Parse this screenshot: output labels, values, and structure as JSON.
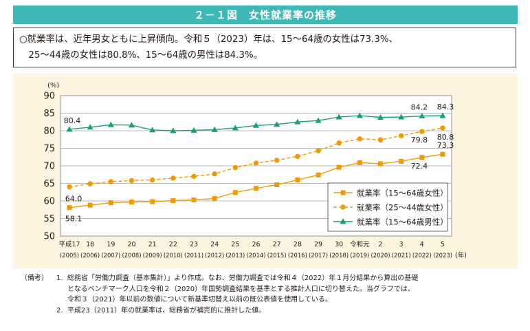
{
  "header": {
    "title": "２－１図　女性就業率の推移"
  },
  "summary": {
    "line1": "○就業率は、近年男女ともに上昇傾向。令和５（2023）年は、15～64歳の女性は73.3%、",
    "line2": "　25～44歳の女性は80.8%、15～64歳の男性は84.3%。"
  },
  "chart_data": {
    "type": "line",
    "yunit": "(%)",
    "xunit": "(年)",
    "ylim": [
      50,
      90
    ],
    "yticks": [
      "50",
      "55",
      "60",
      "65",
      "70",
      "75",
      "80",
      "85",
      "90"
    ],
    "grid": true,
    "legend_position": "bottom-right",
    "categories": [
      {
        "era": "平成17",
        "year": "(2005)"
      },
      {
        "era": "18",
        "year": "(2006)"
      },
      {
        "era": "19",
        "year": "(2007)"
      },
      {
        "era": "20",
        "year": "(2008)"
      },
      {
        "era": "21",
        "year": "(2009)"
      },
      {
        "era": "22",
        "year": "(2010)"
      },
      {
        "era": "23",
        "year": "(2011)"
      },
      {
        "era": "24",
        "year": "(2012)"
      },
      {
        "era": "25",
        "year": "(2013)"
      },
      {
        "era": "26",
        "year": "(2014)"
      },
      {
        "era": "27",
        "year": "(2015)"
      },
      {
        "era": "28",
        "year": "(2016)"
      },
      {
        "era": "29",
        "year": "(2017)"
      },
      {
        "era": "30",
        "year": "(2018)"
      },
      {
        "era": "令和元",
        "year": "(2019)"
      },
      {
        "era": "2",
        "year": "(2020)"
      },
      {
        "era": "3",
        "year": "(2021)"
      },
      {
        "era": "4",
        "year": "(2022)"
      },
      {
        "era": "5",
        "year": "(2023)"
      }
    ],
    "series": [
      {
        "name": "就業率（15～64歳女性）",
        "color": "#f39800",
        "marker": "square",
        "dashed": false,
        "values": [
          58.1,
          58.8,
          59.5,
          59.7,
          59.8,
          60.1,
          60.3,
          60.7,
          62.4,
          63.6,
          64.6,
          66.0,
          67.4,
          69.6,
          70.9,
          70.6,
          71.3,
          72.4,
          73.3
        ],
        "labels": [
          {
            "index": 0,
            "text": "58.1"
          },
          {
            "index": 17,
            "text": "72.4"
          },
          {
            "index": 18,
            "text": "73.3"
          }
        ]
      },
      {
        "name": "就業率（25～44歳女性）",
        "color": "#f39800",
        "marker": "circle",
        "dashed": true,
        "values": [
          64.0,
          64.9,
          65.5,
          65.8,
          66.0,
          66.5,
          67.0,
          67.7,
          69.5,
          70.8,
          71.6,
          72.7,
          74.3,
          76.5,
          77.7,
          77.4,
          78.6,
          79.8,
          80.8
        ],
        "labels": [
          {
            "index": 0,
            "text": "64.0"
          },
          {
            "index": 17,
            "text": "79.8"
          },
          {
            "index": 18,
            "text": "80.8"
          }
        ]
      },
      {
        "name": "就業率（15～64歳男性）",
        "color": "#1a9d7a",
        "marker": "triangle",
        "dashed": false,
        "values": [
          80.4,
          81.0,
          81.7,
          81.6,
          80.2,
          80.0,
          80.1,
          80.3,
          80.8,
          81.5,
          81.8,
          82.5,
          82.9,
          83.9,
          84.3,
          83.8,
          83.9,
          84.2,
          84.3
        ],
        "labels": [
          {
            "index": 0,
            "text": "80.4"
          },
          {
            "index": 17,
            "text": "84.2"
          },
          {
            "index": 18,
            "text": "84.3"
          }
        ]
      }
    ]
  },
  "notes": {
    "prefix": "（備考）",
    "items": [
      {
        "num": "1.",
        "lines": [
          "総務省「労働力調査（基本集計）」より作成。なお、労働力調査では令和４（2022）年１月分結果から算出の基礎",
          "となるベンチマーク人口を令和２（2020）年国勢調査結果を基準とする推計人口に切り替えた。当グラフでは、",
          "令和３（2021）年以前の数値について新基準切替え以前の既公表値を使用している。"
        ]
      },
      {
        "num": "2.",
        "lines": [
          "平成23（2011）年の就業率は、総務省が補完的に推計した値。"
        ]
      }
    ]
  }
}
